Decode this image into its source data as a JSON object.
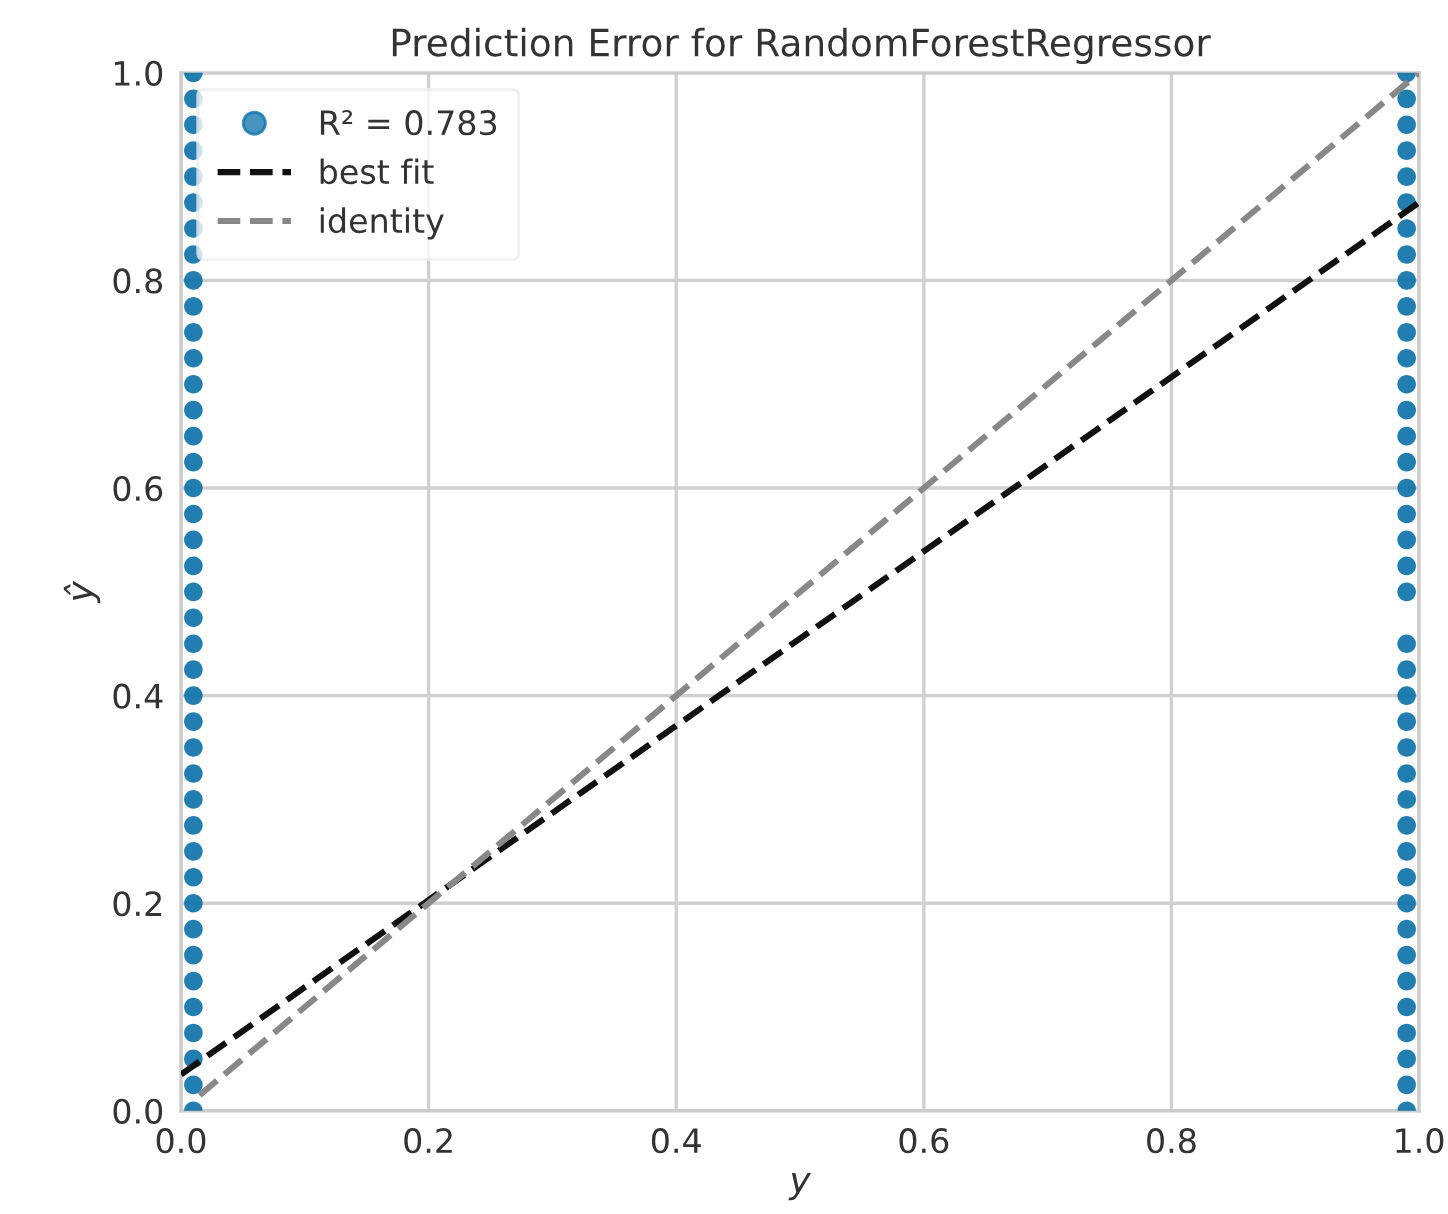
{
  "chart_data": {
    "type": "scatter",
    "title": "Prediction Error for RandomForestRegressor",
    "xlabel": "y",
    "ylabel": "ŷ",
    "series": [
      {
        "name": "R² = 0.783",
        "color": "#0a70a8",
        "marker": "circle",
        "x": [
          0.01,
          0.01,
          0.01,
          0.01,
          0.01,
          0.01,
          0.01,
          0.01,
          0.01,
          0.01,
          0.01,
          0.01,
          0.01,
          0.01,
          0.01,
          0.01,
          0.01,
          0.01,
          0.01,
          0.01,
          0.01,
          0.01,
          0.01,
          0.01,
          0.01,
          0.01,
          0.01,
          0.01,
          0.01,
          0.01,
          0.01,
          0.01,
          0.01,
          0.01,
          0.01,
          0.01,
          0.01,
          0.01,
          0.01,
          0.01,
          0.01,
          0.99,
          0.99,
          0.99,
          0.99,
          0.99,
          0.99,
          0.99,
          0.99,
          0.99,
          0.99,
          0.99,
          0.99,
          0.99,
          0.99,
          0.99,
          0.99,
          0.99,
          0.99,
          0.99,
          0.99,
          0.99,
          0.99,
          0.99,
          0.99,
          0.99,
          0.99,
          0.99,
          0.99,
          0.99,
          0.99,
          0.99,
          0.99,
          0.99,
          0.99,
          0.99,
          0.99,
          0.99,
          0.99,
          0.99,
          0.99
        ],
        "values": [
          0.0,
          0.025,
          0.05,
          0.075,
          0.1,
          0.125,
          0.15,
          0.175,
          0.2,
          0.225,
          0.25,
          0.275,
          0.3,
          0.325,
          0.35,
          0.375,
          0.4,
          0.425,
          0.45,
          0.475,
          0.5,
          0.525,
          0.55,
          0.575,
          0.6,
          0.625,
          0.65,
          0.675,
          0.7,
          0.725,
          0.75,
          0.775,
          0.8,
          0.825,
          0.85,
          0.875,
          0.9,
          0.925,
          0.95,
          0.975,
          1.0,
          0.0,
          0.025,
          0.05,
          0.075,
          0.1,
          0.125,
          0.15,
          0.175,
          0.2,
          0.225,
          0.25,
          0.275,
          0.3,
          0.325,
          0.35,
          0.375,
          0.4,
          0.425,
          0.45,
          0.5,
          0.525,
          0.55,
          0.575,
          0.6,
          0.625,
          0.65,
          0.675,
          0.7,
          0.725,
          0.75,
          0.775,
          0.8,
          0.825,
          0.85,
          0.875,
          0.9,
          0.925,
          0.95,
          0.975,
          1.0
        ]
      },
      {
        "name": "best fit",
        "type": "line",
        "color": "#111111",
        "line_style": "dashed",
        "x": [
          0.0,
          1.0
        ],
        "values": [
          0.035,
          0.875
        ]
      },
      {
        "name": "identity",
        "type": "line",
        "color": "#888888",
        "line_style": "dashed",
        "x": [
          0.015,
          1.0
        ],
        "values": [
          0.015,
          1.0
        ]
      }
    ],
    "xlim": [
      0,
      1
    ],
    "ylim": [
      0,
      1
    ],
    "xticks": [
      {
        "value": 0,
        "label": "0.0"
      },
      0.2,
      0.4,
      0.6,
      0.8,
      {
        "value": 1,
        "label": "1.0"
      }
    ],
    "yticks": [
      {
        "value": 0,
        "label": "0.0"
      },
      0.2,
      0.4,
      0.6,
      0.8,
      {
        "value": 1,
        "label": "1.0"
      }
    ],
    "grid": true,
    "legend": "top left"
  }
}
